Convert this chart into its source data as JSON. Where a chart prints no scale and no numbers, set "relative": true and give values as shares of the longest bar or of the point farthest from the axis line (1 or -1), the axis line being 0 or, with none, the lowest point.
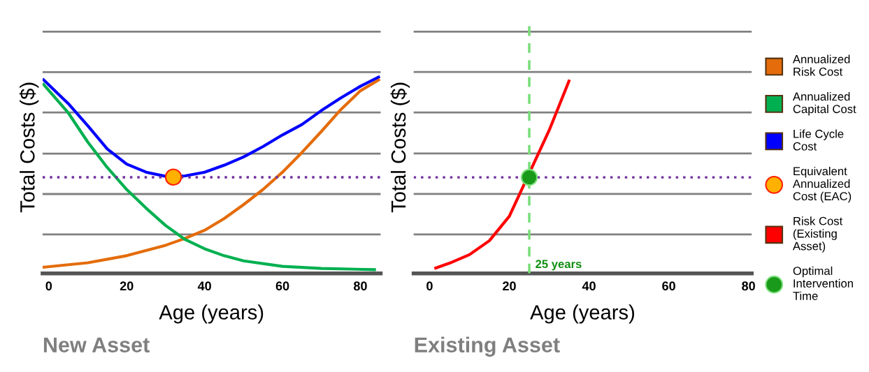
{
  "chart_data": [
    {
      "type": "line",
      "title": "New Asset",
      "xlabel": "Age (years)",
      "ylabel": "Total Costs ($)",
      "relative": true,
      "xlim": [
        -1.6,
        85.2
      ],
      "xticks": [
        0,
        20,
        40,
        60,
        80
      ],
      "grid": false,
      "legend": "right",
      "marker": "none",
      "line_style": "solid",
      "series": [
        {
          "name": "Annualized\nRisk Cost",
          "color": "#e46c0a",
          "x": [
            -1.6,
            10,
            20,
            30,
            35,
            40,
            45,
            50,
            55,
            60,
            65,
            70,
            75,
            80,
            85
          ],
          "values": [
            0.031,
            0.054,
            0.09,
            0.143,
            0.178,
            0.219,
            0.278,
            0.349,
            0.426,
            0.514,
            0.614,
            0.721,
            0.832,
            0.927,
            0.986
          ]
        },
        {
          "name": "Annualized\nCapital Cost",
          "color": "#00b050",
          "x": [
            -1.6,
            5,
            10,
            15,
            20,
            25,
            30,
            35,
            40,
            45,
            50,
            60,
            70,
            84
          ],
          "values": [
            0.965,
            0.815,
            0.667,
            0.538,
            0.426,
            0.331,
            0.243,
            0.172,
            0.125,
            0.09,
            0.064,
            0.036,
            0.025,
            0.019
          ]
        },
        {
          "name": "Life Cycle\nCost",
          "color": "#0000ff",
          "x": [
            -1.6,
            5,
            10,
            15,
            20,
            25,
            30,
            35,
            40,
            45,
            50,
            55,
            60,
            65,
            70,
            75,
            80,
            85
          ],
          "values": [
            0.988,
            0.862,
            0.75,
            0.632,
            0.555,
            0.514,
            0.493,
            0.495,
            0.514,
            0.549,
            0.591,
            0.644,
            0.703,
            0.756,
            0.827,
            0.891,
            0.95,
            1.0
          ]
        },
        {
          "name": "Equivalent\nAnnualized\nCost (EAC)",
          "type": "scatter",
          "marker": "circle",
          "color": "#ffb000",
          "x": [
            32
          ],
          "values": [
            0.489
          ]
        }
      ],
      "ref_lines": [
        {
          "axis": "y",
          "value": 0.198,
          "color": "#808080",
          "line_style": "solid"
        },
        {
          "axis": "y",
          "value": 0.403,
          "color": "#808080",
          "line_style": "solid"
        },
        {
          "axis": "y",
          "value": 0.608,
          "color": "#808080",
          "line_style": "solid"
        },
        {
          "axis": "y",
          "value": 0.817,
          "color": "#808080",
          "line_style": "solid"
        },
        {
          "axis": "y",
          "value": 1.022,
          "color": "#808080",
          "line_style": "solid"
        },
        {
          "axis": "y",
          "value": 1.227,
          "color": "#808080",
          "line_style": "solid"
        },
        {
          "axis": "y",
          "value": 0.488,
          "color": "#7030a0",
          "line_style": "dotted"
        }
      ]
    },
    {
      "type": "line",
      "title": "Existing Asset",
      "xlabel": "Age (years)",
      "ylabel": "Total Costs ($)",
      "relative": true,
      "xlim": [
        -4,
        80.8
      ],
      "xticks": [
        0,
        20,
        40,
        60,
        80
      ],
      "grid": false,
      "legend": "right",
      "marker": "none",
      "line_style": "solid",
      "series": [
        {
          "name": "Risk Cost\n(Existing\nAsset)",
          "color": "#ff0000",
          "x": [
            1.2,
            5,
            10,
            15,
            20,
            30,
            35.1
          ],
          "values": [
            0.025,
            0.053,
            0.097,
            0.169,
            0.295,
            0.739,
            1.0
          ]
        },
        {
          "name": "Optimal\nIntervention\nTime",
          "type": "scatter",
          "marker": "circle",
          "color": "#1a9a1a",
          "x": [
            25
          ],
          "values": [
            0.496
          ]
        }
      ],
      "ref_lines": [
        {
          "axis": "y",
          "value": 0.201,
          "color": "#808080",
          "line_style": "solid"
        },
        {
          "axis": "y",
          "value": 0.41,
          "color": "#808080",
          "line_style": "solid"
        },
        {
          "axis": "y",
          "value": 0.619,
          "color": "#808080",
          "line_style": "solid"
        },
        {
          "axis": "y",
          "value": 0.831,
          "color": "#808080",
          "line_style": "solid"
        },
        {
          "axis": "y",
          "value": 1.04,
          "color": "#808080",
          "line_style": "solid"
        },
        {
          "axis": "y",
          "value": 1.248,
          "color": "#808080",
          "line_style": "solid"
        },
        {
          "axis": "y",
          "value": 0.496,
          "color": "#7030a0",
          "line_style": "dotted"
        },
        {
          "axis": "x",
          "value": 25,
          "label": "25 years",
          "color": "#77dd77",
          "line_style": "dashed"
        }
      ]
    }
  ]
}
